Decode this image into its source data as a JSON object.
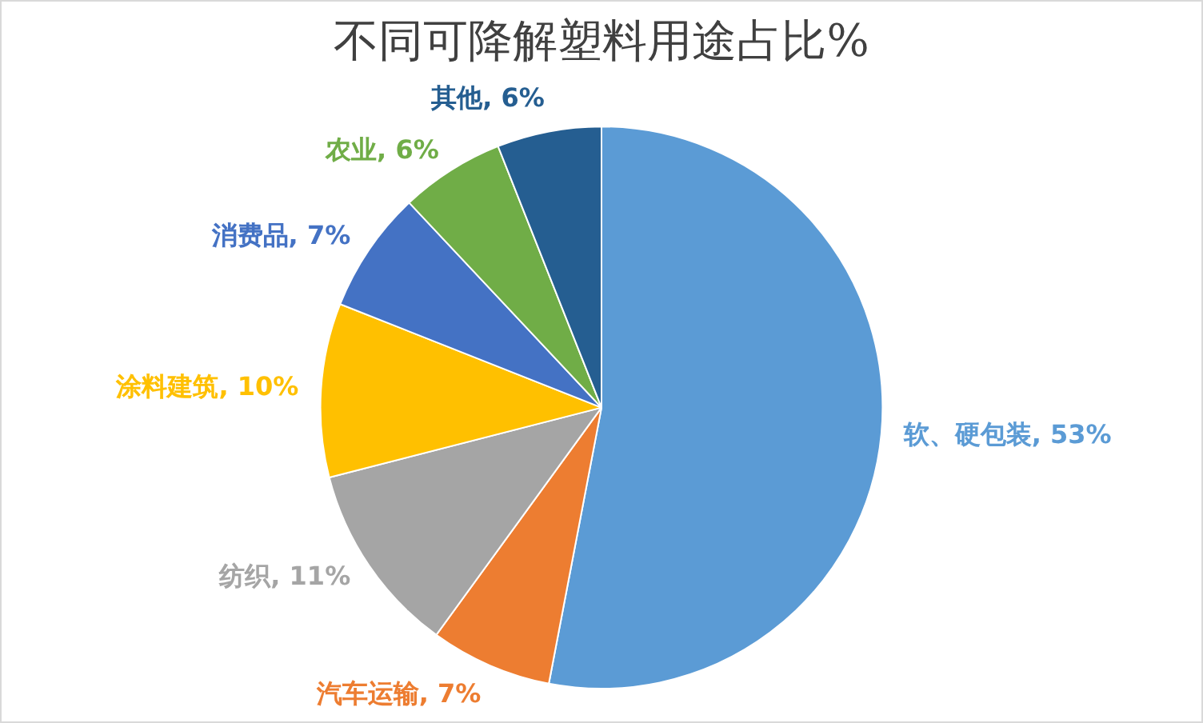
{
  "chart_data": {
    "type": "pie",
    "title": "不同可降解塑料用途占比%",
    "categories": [
      "软、硬包装",
      "汽车运输",
      "纺织",
      "涂料建筑",
      "消费品",
      "农业",
      "其他"
    ],
    "values": [
      53,
      7,
      11,
      10,
      7,
      6,
      6
    ],
    "value_labels": [
      "53%",
      "7%",
      "11%",
      "10%",
      "7%",
      "6%",
      "6%"
    ],
    "colors": [
      "#5b9bd5",
      "#ed7d31",
      "#a5a5a5",
      "#ffc000",
      "#4472c4",
      "#70ad47",
      "#255e91"
    ],
    "legend": false
  }
}
